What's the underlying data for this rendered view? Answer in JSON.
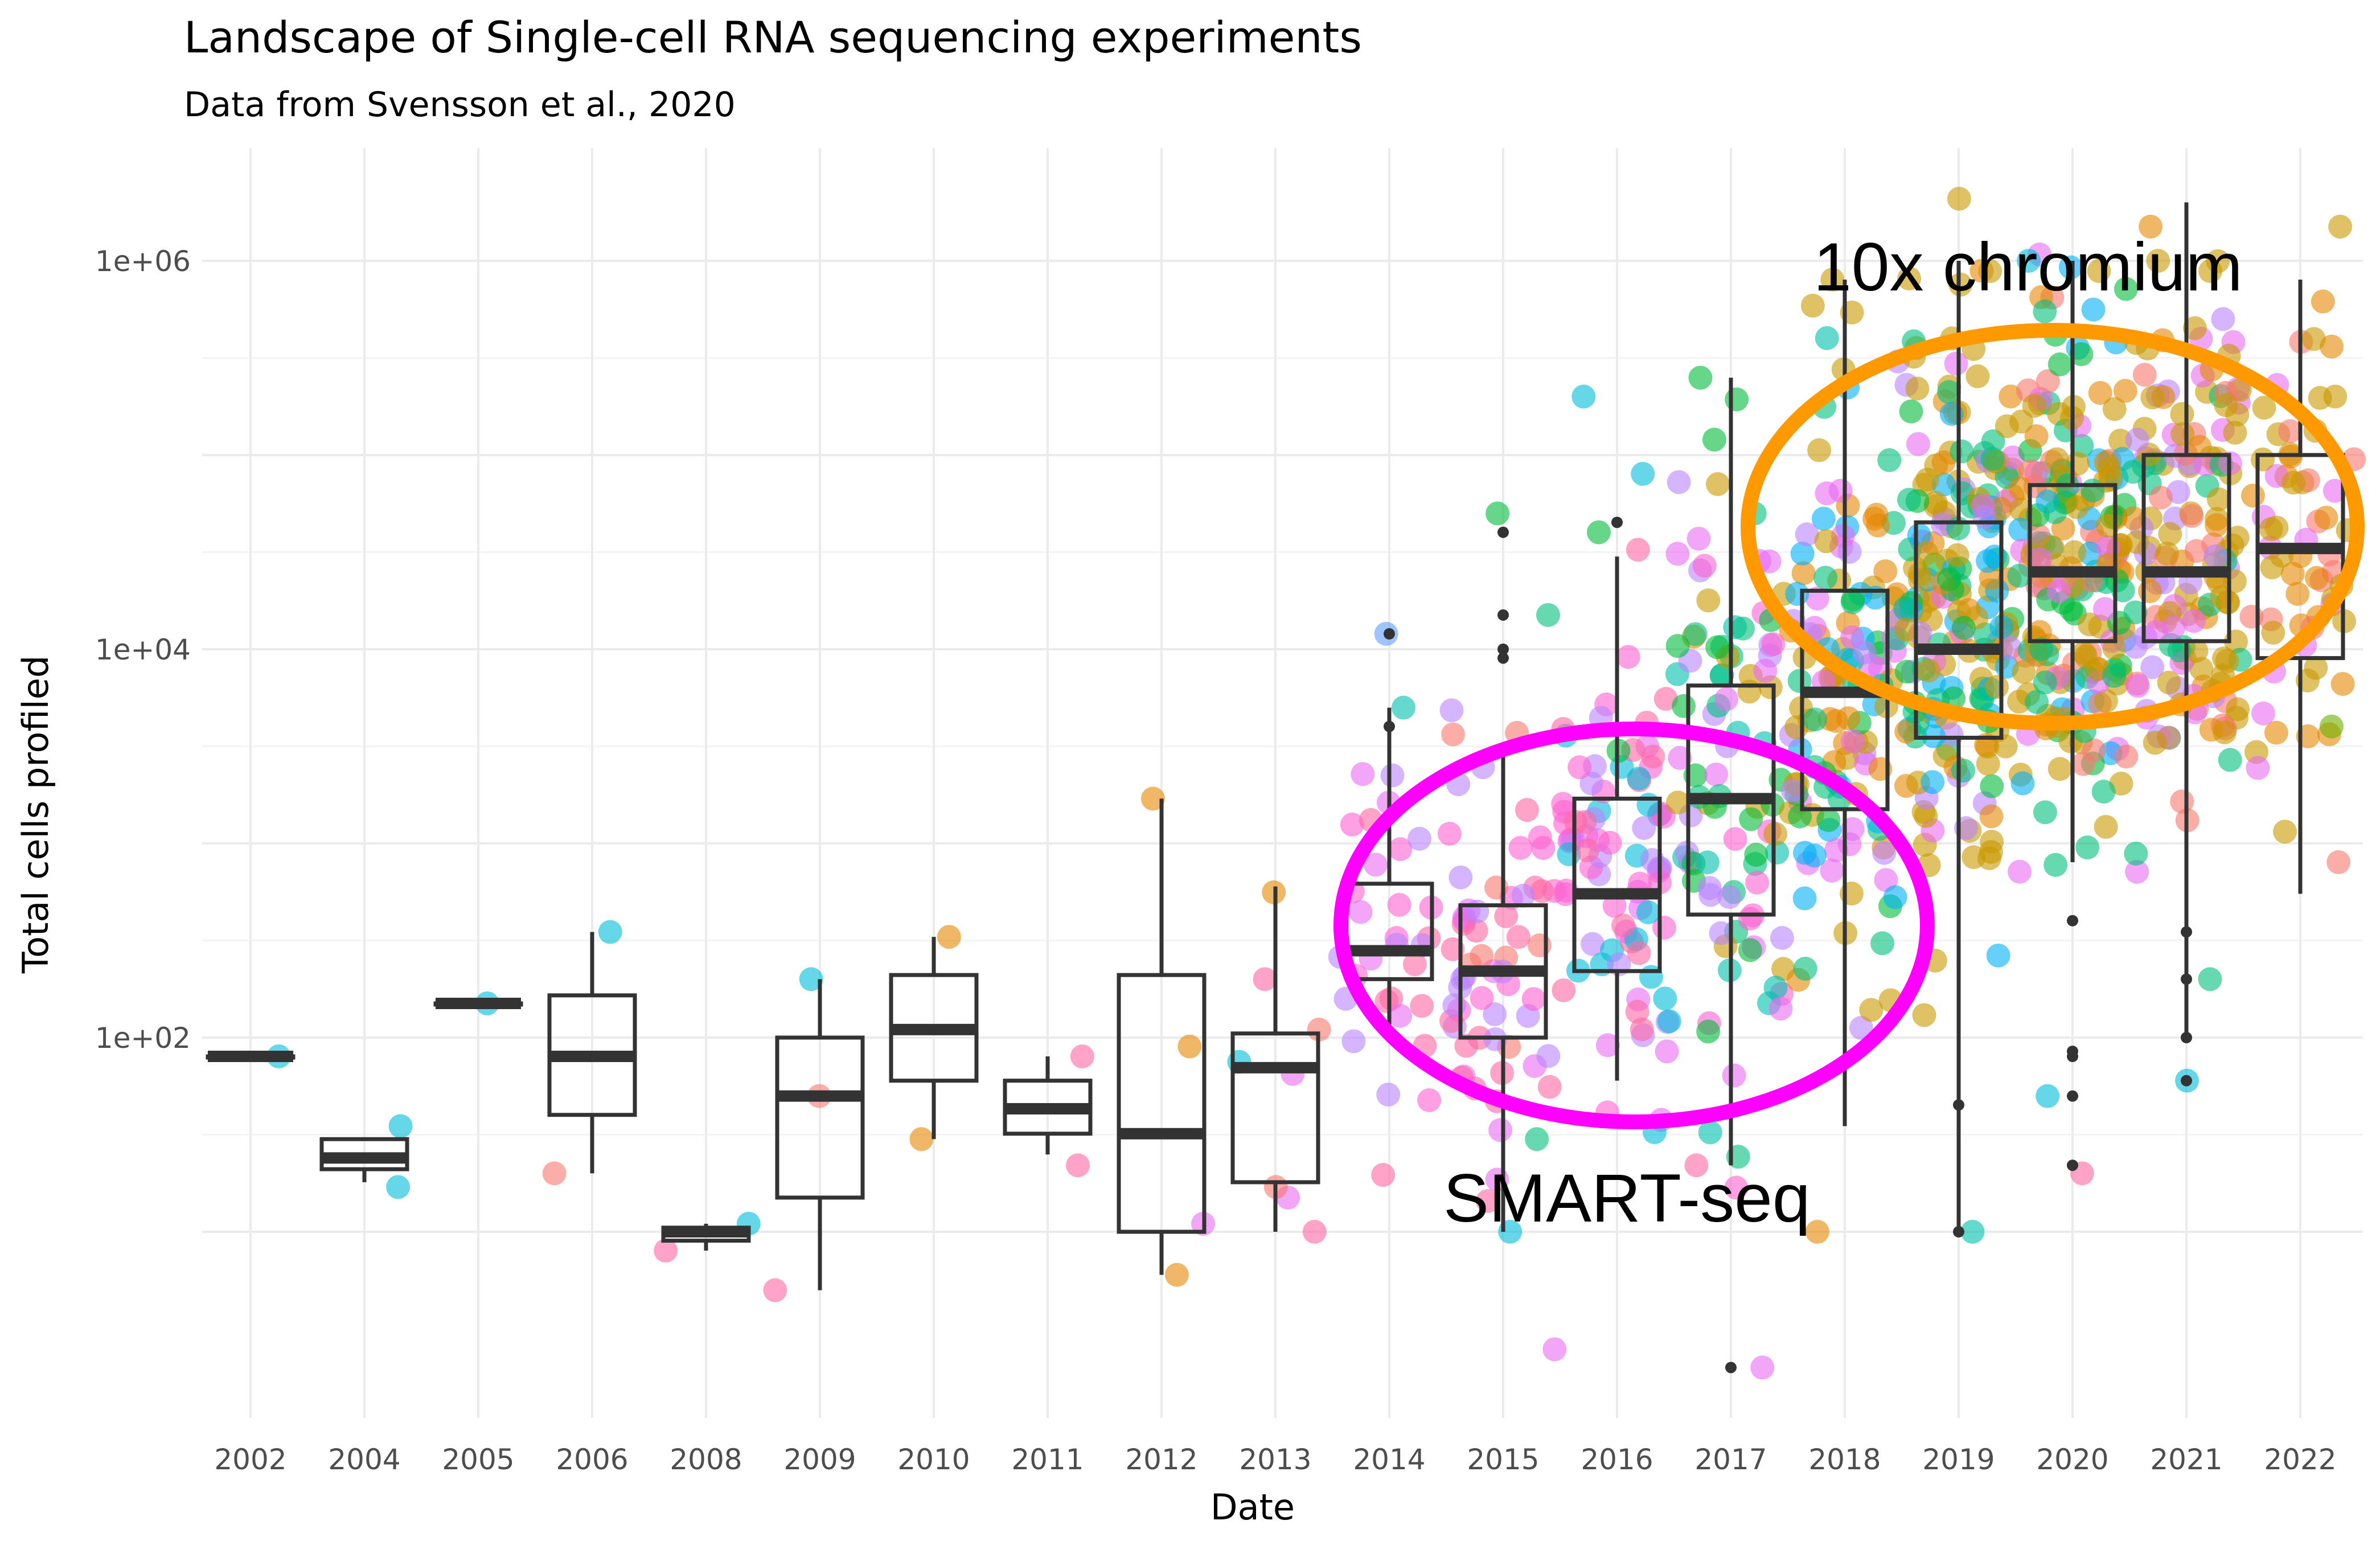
{
  "chart_data": {
    "type": "boxplot",
    "title": "Landscape of Single-cell RNA sequencing experiments",
    "subtitle": "Data from Svensson et al., 2020",
    "xlabel": "Date",
    "ylabel": "Total cells profiled",
    "y_scale": "log10",
    "ylim": [
      2,
      5000000
    ],
    "y_ticks": [
      {
        "value": 100,
        "label": "1e+02"
      },
      {
        "value": 10000,
        "label": "1e+04"
      },
      {
        "value": 1000000,
        "label": "1e+06"
      }
    ],
    "grid": true,
    "categories": [
      "2002",
      "2004",
      "2005",
      "2006",
      "2008",
      "2009",
      "2010",
      "2011",
      "2012",
      "2013",
      "2014",
      "2015",
      "2016",
      "2017",
      "2018",
      "2019",
      "2020",
      "2021",
      "2022"
    ],
    "boxes": [
      {
        "category": "2002",
        "whisker_low": 80,
        "q1": 80,
        "median": 80,
        "q3": 80,
        "whisker_high": 80
      },
      {
        "category": "2004",
        "whisker_low": 18,
        "q1": 21,
        "median": 24,
        "q3": 30,
        "whisker_high": 30
      },
      {
        "category": "2005",
        "whisker_low": 150,
        "q1": 150,
        "median": 150,
        "q3": 150,
        "whisker_high": 150
      },
      {
        "category": "2006",
        "whisker_low": 20,
        "q1": 40,
        "median": 80,
        "q3": 165,
        "whisker_high": 350
      },
      {
        "category": "2008",
        "whisker_low": 8,
        "q1": 9,
        "median": 10,
        "q3": 10.5,
        "whisker_high": 11
      },
      {
        "category": "2009",
        "whisker_low": 5,
        "q1": 15,
        "median": 50,
        "q3": 100,
        "whisker_high": 200
      },
      {
        "category": "2010",
        "whisker_low": 30,
        "q1": 60,
        "median": 110,
        "q3": 210,
        "whisker_high": 330
      },
      {
        "category": "2011",
        "whisker_low": 25,
        "q1": 32,
        "median": 43,
        "q3": 60,
        "whisker_high": 80
      },
      {
        "category": "2012",
        "whisker_low": 6,
        "q1": 10,
        "median": 32,
        "q3": 210,
        "whisker_high": 1700
      },
      {
        "category": "2013",
        "whisker_low": 10,
        "q1": 18,
        "median": 70,
        "q3": 105,
        "whisker_high": 600
      },
      {
        "category": "2014",
        "whisker_low": 100,
        "q1": 200,
        "median": 280,
        "q3": 620,
        "whisker_high": 5000
      },
      {
        "category": "2015",
        "whisker_low": 10,
        "q1": 100,
        "median": 220,
        "q3": 480,
        "whisker_high": 3000
      },
      {
        "category": "2016",
        "whisker_low": 60,
        "q1": 220,
        "median": 550,
        "q3": 1700,
        "whisker_high": 30000
      },
      {
        "category": "2017",
        "whisker_low": 22,
        "q1": 430,
        "median": 1700,
        "q3": 6500,
        "whisker_high": 250000
      },
      {
        "category": "2018",
        "whisker_low": 35,
        "q1": 1500,
        "median": 6000,
        "q3": 20000,
        "whisker_high": 800000
      },
      {
        "category": "2019",
        "whisker_low": 10,
        "q1": 3500,
        "median": 10000,
        "q3": 45000,
        "whisker_high": 1000000
      },
      {
        "category": "2020",
        "whisker_low": 800,
        "q1": 11000,
        "median": 25000,
        "q3": 70000,
        "whisker_high": 1000000
      },
      {
        "category": "2021",
        "whisker_low": 100,
        "q1": 11000,
        "median": 25000,
        "q3": 100000,
        "whisker_high": 2000000
      },
      {
        "category": "2022",
        "whisker_low": 550,
        "q1": 9000,
        "median": 33000,
        "q3": 100000,
        "whisker_high": 800000
      }
    ],
    "dots_seed": 20200101,
    "dot_opacity": 0.6,
    "dot_colors": [
      "#F8766D",
      "#E58700",
      "#C99800",
      "#A3A500",
      "#6BB100",
      "#00BA38",
      "#00BF7D",
      "#00C0AF",
      "#00BCD8",
      "#00B0F6",
      "#619CFF",
      "#B983FF",
      "#E76BF3",
      "#FD61D1",
      "#FF67A4"
    ],
    "dot_groups": [
      {
        "category": "2002",
        "points": [
          [
            80,
            8
          ]
        ]
      },
      {
        "category": "2004",
        "points": [
          [
            17,
            8
          ],
          [
            35,
            8
          ]
        ]
      },
      {
        "category": "2005",
        "points": [
          [
            150,
            8
          ]
        ]
      },
      {
        "category": "2006",
        "points": [
          [
            20,
            0
          ],
          [
            350,
            8
          ]
        ]
      },
      {
        "category": "2008",
        "points": [
          [
            8,
            14
          ],
          [
            11,
            8
          ]
        ]
      },
      {
        "category": "2009",
        "points": [
          [
            5,
            14
          ],
          [
            50,
            0
          ],
          [
            200,
            8
          ]
        ]
      },
      {
        "category": "2010",
        "points": [
          [
            30,
            1
          ],
          [
            330,
            1
          ]
        ]
      },
      {
        "category": "2011",
        "points": [
          [
            22,
            14
          ],
          [
            80,
            14
          ]
        ]
      },
      {
        "category": "2012",
        "points": [
          [
            6,
            1
          ],
          [
            11,
            12
          ],
          [
            90,
            1
          ],
          [
            1700,
            1
          ]
        ]
      },
      {
        "category": "2013",
        "points": [
          [
            10,
            14
          ],
          [
            15,
            12
          ],
          [
            17,
            0
          ],
          [
            65,
            12
          ],
          [
            75,
            8
          ],
          [
            110,
            0
          ],
          [
            200,
            14
          ],
          [
            560,
            1
          ]
        ]
      },
      {
        "category": "2014",
        "clouds": [
          {
            "count": 30,
            "center": 400,
            "spread": 0.45,
            "colors": [
              12,
              13,
              11,
              14
            ]
          }
        ],
        "points": [
          [
            5000,
            7
          ],
          [
            12000,
            10
          ]
        ]
      },
      {
        "category": "2015",
        "clouds": [
          {
            "count": 60,
            "center": 200,
            "spread": 0.55,
            "colors": [
              12,
              13,
              14,
              0,
              11
            ]
          }
        ],
        "points": [
          [
            10,
            8
          ],
          [
            30,
            6
          ],
          [
            50000,
            5
          ],
          [
            15000,
            6
          ]
        ]
      },
      {
        "category": "2016",
        "clouds": [
          {
            "count": 80,
            "center": 600,
            "spread": 0.55,
            "colors": [
              12,
              13,
              11,
              14,
              8
            ]
          }
        ],
        "points": [
          [
            40000,
            5
          ],
          [
            200000,
            8
          ],
          [
            80000,
            8
          ],
          [
            3000,
            5
          ]
        ]
      },
      {
        "category": "2017",
        "clouds": [
          {
            "count": 90,
            "center": 2000,
            "spread": 0.75,
            "colors": [
              12,
              13,
              11,
              6,
              5,
              7,
              2
            ]
          }
        ],
        "points": [
          [
            2,
            12
          ],
          [
            22,
            14
          ],
          [
            250000,
            5
          ],
          [
            120000,
            5
          ],
          [
            50000,
            6
          ]
        ]
      },
      {
        "category": "2018",
        "clouds": [
          {
            "count": 130,
            "center": 6000,
            "spread": 0.8,
            "colors": [
              2,
              1,
              2,
              12,
              5,
              6,
              11,
              9
            ]
          }
        ],
        "points": [
          [
            10,
            1
          ],
          [
            800000,
            2
          ],
          [
            400000,
            7
          ]
        ]
      },
      {
        "category": "2019",
        "clouds": [
          {
            "count": 190,
            "center": 15000,
            "spread": 0.75,
            "colors": [
              2,
              1,
              2,
              2,
              12,
              5,
              6,
              11,
              9
            ]
          }
        ],
        "points": [
          [
            10,
            7
          ],
          [
            30000,
            9
          ]
        ]
      },
      {
        "category": "2020",
        "clouds": [
          {
            "count": 200,
            "center": 25000,
            "spread": 0.7,
            "colors": [
              2,
              1,
              2,
              2,
              12,
              5,
              6,
              9,
              0
            ]
          }
        ],
        "points": [
          [
            20,
            14
          ],
          [
            50,
            8
          ],
          [
            1000000,
            8
          ]
        ]
      },
      {
        "category": "2021",
        "clouds": [
          {
            "count": 150,
            "center": 30000,
            "spread": 0.7,
            "colors": [
              2,
              1,
              2,
              2,
              12,
              6,
              0,
              11
            ]
          }
        ],
        "points": [
          [
            60,
            8
          ],
          [
            200,
            6
          ],
          [
            1000000,
            2
          ],
          [
            1500000,
            1
          ]
        ]
      },
      {
        "category": "2022",
        "clouds": [
          {
            "count": 60,
            "center": 40000,
            "spread": 0.6,
            "colors": [
              2,
              1,
              2,
              12,
              0
            ]
          }
        ],
        "points": [
          [
            800,
            0
          ],
          [
            4000,
            4
          ],
          [
            200000,
            2
          ],
          [
            1500000,
            2
          ]
        ]
      }
    ],
    "outliers": [
      {
        "category": "2014",
        "values": [
          12000,
          4000
        ]
      },
      {
        "category": "2015",
        "values": [
          40000,
          15000,
          10000,
          9000
        ]
      },
      {
        "category": "2016",
        "values": [
          45000
        ]
      },
      {
        "category": "2017",
        "values": [
          2
        ]
      },
      {
        "category": "2019",
        "values": [
          10,
          45
        ]
      },
      {
        "category": "2020",
        "values": [
          22,
          50,
          80,
          85,
          400
        ]
      },
      {
        "category": "2021",
        "values": [
          100,
          200,
          350,
          60
        ]
      }
    ],
    "annotations": [
      {
        "text": "10x chromium",
        "color": "#FF9900",
        "label_color": "#000000"
      },
      {
        "text": "SMART-seq",
        "color": "#FF00FF",
        "label_color": "#000000"
      }
    ]
  }
}
